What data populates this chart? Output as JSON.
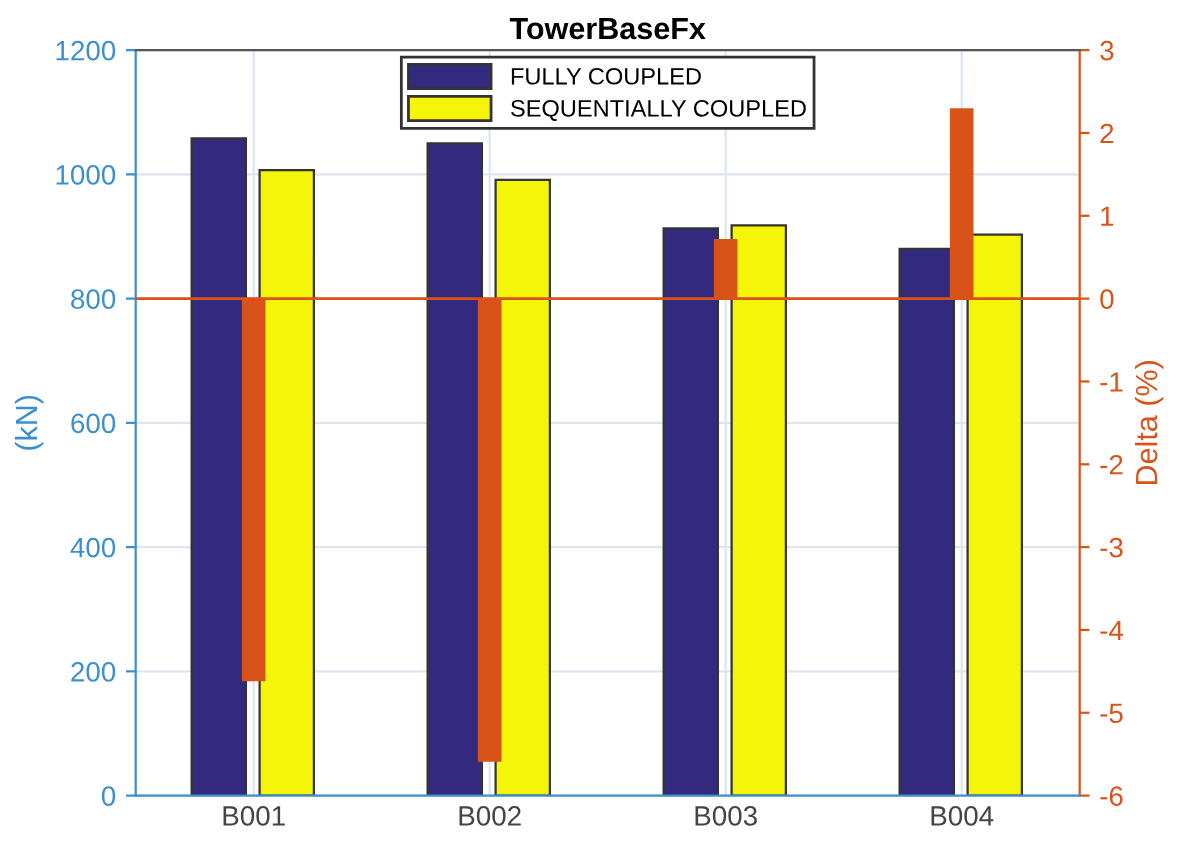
{
  "chart_data": {
    "type": "bar",
    "title": "TowerBaseFx",
    "ylabel": "(kN)",
    "y2label": "Delta (%)",
    "categories": [
      "B001",
      "B002",
      "B003",
      "B004"
    ],
    "series": [
      {
        "name": "FULLY COUPLED",
        "color": "#332a7f",
        "values": [
          1058,
          1050,
          913,
          880
        ]
      },
      {
        "name": "SEQUENTIALLY COUPLED",
        "color": "#f5f50a",
        "values": [
          1007,
          991,
          918,
          903
        ]
      },
      {
        "color": "#d95319",
        "values": [
          -4.62,
          -5.59,
          0.72,
          2.3
        ],
        "axis": "y2"
      }
    ],
    "ylim": [
      0,
      1200
    ],
    "yticks": [
      0,
      200,
      400,
      600,
      800,
      1000,
      1200
    ],
    "y2lim": [
      -6,
      3
    ],
    "y2ticks": [
      -6,
      -5,
      -4,
      -3,
      -2,
      -1,
      0,
      1,
      2,
      3
    ],
    "ref_lines": [
      {
        "axis": "y2",
        "value": 0,
        "color": "#d95319"
      }
    ],
    "grid": true,
    "legend": "top center"
  }
}
